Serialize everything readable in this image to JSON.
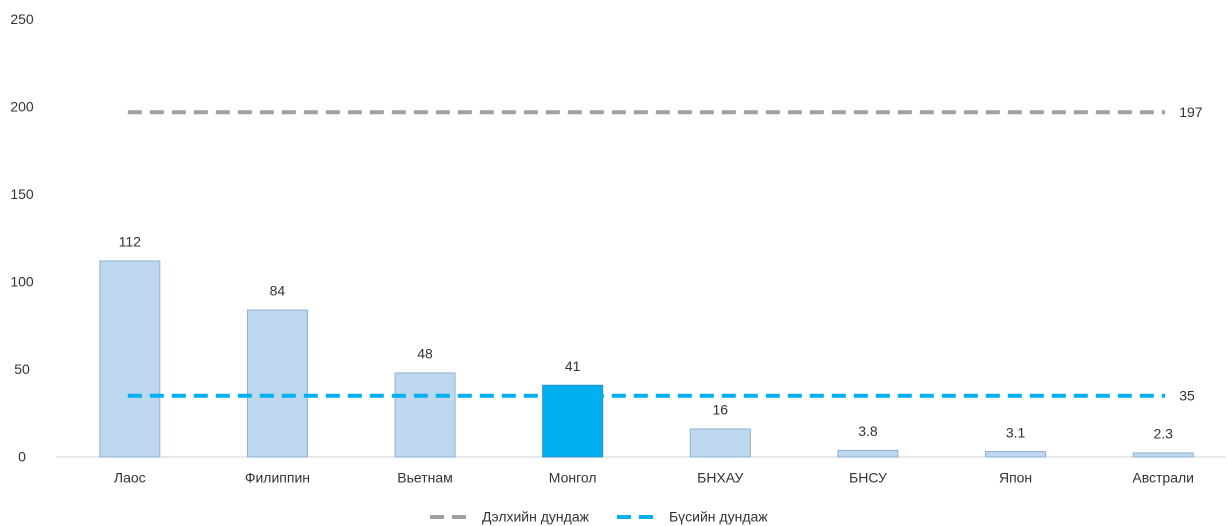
{
  "chart_data": {
    "type": "bar",
    "categories": [
      "Лаос",
      "Филиппин",
      "Вьетнам",
      "Монгол",
      "БНХАУ",
      "БНСУ",
      "Япон",
      "Австрали"
    ],
    "values": [
      112,
      84,
      48,
      41,
      16,
      3.8,
      3.1,
      2.3
    ],
    "colors": [
      "#bdd7ee",
      "#bdd7ee",
      "#bdd7ee",
      "#00b0f0",
      "#bdd7ee",
      "#bdd7ee",
      "#bdd7ee",
      "#bdd7ee"
    ],
    "reference_lines": [
      {
        "name": "Дэлхийн дундаж",
        "value": 197,
        "color": "#a0a0a0"
      },
      {
        "name": "Бүсийн дундаж",
        "value": 35,
        "color": "#00b0f0"
      }
    ],
    "ylim": [
      0,
      250
    ],
    "yticks": [
      0,
      50,
      100,
      150,
      200,
      250
    ],
    "grid": false
  }
}
